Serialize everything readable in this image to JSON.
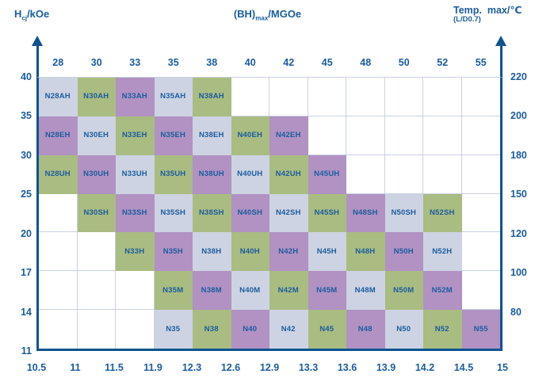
{
  "titles": {
    "left_axis": {
      "base": "H",
      "sub": "cj",
      "rest": "/kOe"
    },
    "top_axis": {
      "base": "(BH)",
      "sub": "max",
      "rest": "/MGOe"
    },
    "right_axis": "Temp.  max/℃",
    "right_axis_note": "(L/D0.7)"
  },
  "colors": {
    "axis": "#0e5390",
    "text": "#1b5c9e",
    "gridline": "#c9d2e0",
    "cell_light": "#cdd3e2",
    "cell_green": "#a9bc81",
    "cell_purple": "#b192c3"
  },
  "chart_data": {
    "type": "heatmap",
    "title": "(BH)max/MGOe",
    "x_top_label": "(BH)max/MGOe",
    "x_top_ticks": [
      "28",
      "30",
      "33",
      "35",
      "38",
      "40",
      "42",
      "45",
      "48",
      "50",
      "52",
      "55"
    ],
    "x_bottom_ticks": [
      "10.5",
      "11",
      "11.5",
      "11.9",
      "12.3",
      "12.6",
      "12.9",
      "13.3",
      "13.6",
      "13.9",
      "14.2",
      "14.5",
      "15"
    ],
    "y_left_label": "Hcj/kOe",
    "y_left_ticks": [
      "40",
      "35",
      "30",
      "25",
      "20",
      "17",
      "14",
      "11"
    ],
    "y_right_label": "Temp. max/℃ (L/D0.7)",
    "y_right_ticks": [
      "220",
      "200",
      "180",
      "150",
      "120",
      "100",
      "80"
    ],
    "grid_columns": 12,
    "grid_rows": 7,
    "rows": [
      {
        "cells": [
          {
            "label": "N28AH",
            "color": "light"
          },
          {
            "label": "N30AH",
            "color": "green"
          },
          {
            "label": "N33AH",
            "color": "purple"
          },
          {
            "label": "N35AH",
            "color": "light"
          },
          {
            "label": "N38AH",
            "color": "green"
          },
          null,
          null,
          null,
          null,
          null,
          null,
          null
        ]
      },
      {
        "cells": [
          {
            "label": "N28EH",
            "color": "purple"
          },
          {
            "label": "N30EH",
            "color": "light"
          },
          {
            "label": "N33EH",
            "color": "green"
          },
          {
            "label": "N35EH",
            "color": "purple"
          },
          {
            "label": "N38EH",
            "color": "light"
          },
          {
            "label": "N40EH",
            "color": "green"
          },
          {
            "label": "N42EH",
            "color": "purple"
          },
          null,
          null,
          null,
          null,
          null
        ]
      },
      {
        "cells": [
          {
            "label": "N28UH",
            "color": "green"
          },
          {
            "label": "N30UH",
            "color": "purple"
          },
          {
            "label": "N33UH",
            "color": "light"
          },
          {
            "label": "N35UH",
            "color": "green"
          },
          {
            "label": "N38UH",
            "color": "purple"
          },
          {
            "label": "N40UH",
            "color": "light"
          },
          {
            "label": "N42UH",
            "color": "green"
          },
          {
            "label": "N45UH",
            "color": "purple"
          },
          null,
          null,
          null,
          null
        ]
      },
      {
        "cells": [
          null,
          {
            "label": "N30SH",
            "color": "green"
          },
          {
            "label": "N33SH",
            "color": "purple"
          },
          {
            "label": "N35SH",
            "color": "light"
          },
          {
            "label": "N38SH",
            "color": "green"
          },
          {
            "label": "N40SH",
            "color": "purple"
          },
          {
            "label": "N42SH",
            "color": "light"
          },
          {
            "label": "N45SH",
            "color": "green"
          },
          {
            "label": "N48SH",
            "color": "purple"
          },
          {
            "label": "N50SH",
            "color": "light"
          },
          {
            "label": "N52SH",
            "color": "green"
          },
          null
        ]
      },
      {
        "cells": [
          null,
          null,
          {
            "label": "N33H",
            "color": "green"
          },
          {
            "label": "N35H",
            "color": "purple"
          },
          {
            "label": "N38H",
            "color": "light"
          },
          {
            "label": "N40H",
            "color": "green"
          },
          {
            "label": "N42H",
            "color": "purple"
          },
          {
            "label": "N45H",
            "color": "light"
          },
          {
            "label": "N48H",
            "color": "green"
          },
          {
            "label": "N50H",
            "color": "purple"
          },
          {
            "label": "N52H",
            "color": "light"
          },
          null
        ]
      },
      {
        "cells": [
          null,
          null,
          null,
          {
            "label": "N35M",
            "color": "green"
          },
          {
            "label": "N38M",
            "color": "purple"
          },
          {
            "label": "N40M",
            "color": "light"
          },
          {
            "label": "N42M",
            "color": "green"
          },
          {
            "label": "N45M",
            "color": "purple"
          },
          {
            "label": "N48M",
            "color": "light"
          },
          {
            "label": "N50M",
            "color": "green"
          },
          {
            "label": "N52M",
            "color": "purple"
          },
          null
        ]
      },
      {
        "cells": [
          null,
          null,
          null,
          {
            "label": "N35",
            "color": "light"
          },
          {
            "label": "N38",
            "color": "green"
          },
          {
            "label": "N40",
            "color": "purple"
          },
          {
            "label": "N42",
            "color": "light"
          },
          {
            "label": "N45",
            "color": "green"
          },
          {
            "label": "N48",
            "color": "purple"
          },
          {
            "label": "N50",
            "color": "light"
          },
          {
            "label": "N52",
            "color": "green"
          },
          {
            "label": "N55",
            "color": "purple"
          }
        ]
      }
    ]
  }
}
